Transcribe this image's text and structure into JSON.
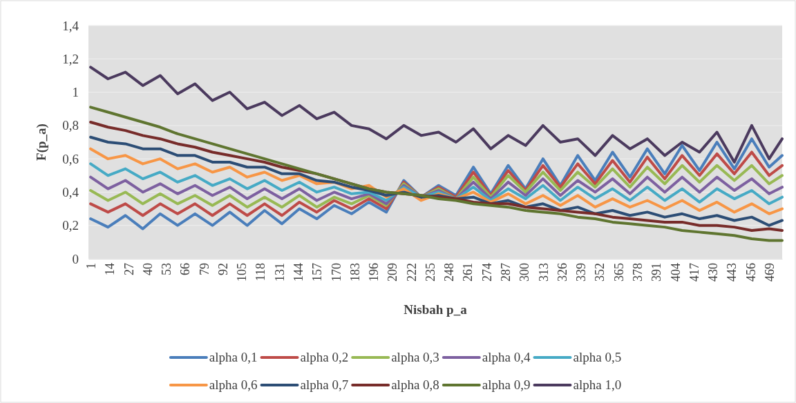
{
  "chart_data": {
    "type": "line",
    "xlabel": "Nisbah p_a",
    "ylabel": "F(p_a)",
    "x": [
      1,
      13,
      25,
      37,
      49,
      61,
      73,
      85,
      97,
      109,
      121,
      133,
      145,
      157,
      169,
      181,
      193,
      205,
      217,
      229,
      241,
      253,
      265,
      277,
      289,
      301,
      313,
      325,
      337,
      349,
      361,
      373,
      385,
      397,
      409,
      421,
      433,
      445,
      457,
      469,
      478
    ],
    "xlim": [
      -0.5,
      478
    ],
    "xticks": [
      1,
      14,
      27,
      40,
      53,
      66,
      79,
      92,
      105,
      118,
      131,
      144,
      157,
      170,
      183,
      196,
      209,
      222,
      235,
      248,
      261,
      274,
      287,
      300,
      313,
      326,
      339,
      352,
      365,
      378,
      391,
      404,
      417,
      430,
      443,
      456,
      469
    ],
    "ylim": [
      0,
      1.4
    ],
    "yticks": [
      {
        "value": 0,
        "label": "0"
      },
      {
        "value": 0.2,
        "label": "0,2"
      },
      {
        "value": 0.4,
        "label": "0,4"
      },
      {
        "value": 0.6,
        "label": "0,6"
      },
      {
        "value": 0.8,
        "label": "0,8"
      },
      {
        "value": 1,
        "label": "1"
      },
      {
        "value": 1.2,
        "label": "1,2"
      },
      {
        "value": 1.4,
        "label": "1,4"
      }
    ],
    "grid": "y",
    "legend": "bottom",
    "marker": "none",
    "line_style": "solid",
    "series": [
      {
        "name": "alpha 0,1",
        "color": "#4a7ebb",
        "values": [
          0.24,
          0.19,
          0.26,
          0.18,
          0.27,
          0.2,
          0.27,
          0.2,
          0.28,
          0.2,
          0.29,
          0.21,
          0.3,
          0.24,
          0.32,
          0.27,
          0.34,
          0.28,
          0.47,
          0.37,
          0.44,
          0.38,
          0.55,
          0.39,
          0.56,
          0.42,
          0.6,
          0.44,
          0.62,
          0.47,
          0.64,
          0.49,
          0.66,
          0.51,
          0.68,
          0.53,
          0.7,
          0.54,
          0.72,
          0.55,
          0.62
        ]
      },
      {
        "name": "alpha 0,2",
        "color": "#be4b48",
        "values": [
          0.33,
          0.28,
          0.33,
          0.26,
          0.33,
          0.27,
          0.33,
          0.26,
          0.33,
          0.26,
          0.33,
          0.26,
          0.34,
          0.28,
          0.35,
          0.3,
          0.36,
          0.3,
          0.46,
          0.37,
          0.43,
          0.37,
          0.52,
          0.38,
          0.53,
          0.41,
          0.56,
          0.43,
          0.57,
          0.45,
          0.59,
          0.46,
          0.61,
          0.48,
          0.62,
          0.5,
          0.63,
          0.51,
          0.64,
          0.5,
          0.56
        ]
      },
      {
        "name": "alpha 0,3",
        "color": "#98b954",
        "values": [
          0.41,
          0.35,
          0.4,
          0.33,
          0.39,
          0.33,
          0.38,
          0.32,
          0.38,
          0.31,
          0.37,
          0.31,
          0.38,
          0.31,
          0.37,
          0.33,
          0.38,
          0.32,
          0.45,
          0.37,
          0.42,
          0.36,
          0.49,
          0.37,
          0.5,
          0.4,
          0.52,
          0.41,
          0.52,
          0.43,
          0.54,
          0.43,
          0.55,
          0.45,
          0.56,
          0.46,
          0.56,
          0.47,
          0.56,
          0.45,
          0.5
        ]
      },
      {
        "name": "alpha 0,4",
        "color": "#7d60a0",
        "values": [
          0.49,
          0.42,
          0.47,
          0.4,
          0.45,
          0.39,
          0.44,
          0.38,
          0.43,
          0.36,
          0.42,
          0.36,
          0.42,
          0.35,
          0.4,
          0.36,
          0.39,
          0.33,
          0.44,
          0.37,
          0.41,
          0.36,
          0.46,
          0.36,
          0.46,
          0.38,
          0.48,
          0.38,
          0.47,
          0.4,
          0.48,
          0.39,
          0.49,
          0.4,
          0.49,
          0.4,
          0.49,
          0.41,
          0.48,
          0.39,
          0.43
        ]
      },
      {
        "name": "alpha 0,5",
        "color": "#46aac5",
        "values": [
          0.57,
          0.5,
          0.54,
          0.48,
          0.52,
          0.46,
          0.5,
          0.44,
          0.48,
          0.42,
          0.47,
          0.41,
          0.46,
          0.4,
          0.43,
          0.39,
          0.4,
          0.35,
          0.43,
          0.37,
          0.4,
          0.36,
          0.43,
          0.35,
          0.42,
          0.36,
          0.44,
          0.35,
          0.43,
          0.36,
          0.42,
          0.35,
          0.43,
          0.35,
          0.42,
          0.34,
          0.42,
          0.36,
          0.41,
          0.33,
          0.37
        ]
      },
      {
        "name": "alpha 0,6",
        "color": "#f79646",
        "values": [
          0.66,
          0.6,
          0.62,
          0.57,
          0.6,
          0.54,
          0.57,
          0.52,
          0.55,
          0.49,
          0.52,
          0.47,
          0.5,
          0.45,
          0.46,
          0.42,
          0.44,
          0.37,
          0.42,
          0.35,
          0.39,
          0.36,
          0.4,
          0.34,
          0.39,
          0.33,
          0.38,
          0.32,
          0.38,
          0.31,
          0.36,
          0.31,
          0.35,
          0.3,
          0.35,
          0.29,
          0.34,
          0.28,
          0.33,
          0.27,
          0.3
        ]
      },
      {
        "name": "alpha 0,7",
        "color": "#2c4d75",
        "values": [
          0.73,
          0.7,
          0.69,
          0.66,
          0.66,
          0.62,
          0.62,
          0.58,
          0.58,
          0.55,
          0.55,
          0.51,
          0.51,
          0.47,
          0.46,
          0.43,
          0.41,
          0.38,
          0.4,
          0.37,
          0.38,
          0.36,
          0.37,
          0.33,
          0.35,
          0.31,
          0.33,
          0.29,
          0.31,
          0.27,
          0.29,
          0.26,
          0.28,
          0.25,
          0.27,
          0.24,
          0.26,
          0.23,
          0.25,
          0.2,
          0.23
        ]
      },
      {
        "name": "alpha 0,8",
        "color": "#772c2a",
        "values": [
          0.82,
          0.79,
          0.77,
          0.74,
          0.72,
          0.69,
          0.67,
          0.64,
          0.62,
          0.6,
          0.58,
          0.55,
          0.53,
          0.51,
          0.48,
          0.45,
          0.42,
          0.4,
          0.39,
          0.38,
          0.37,
          0.36,
          0.34,
          0.33,
          0.33,
          0.31,
          0.3,
          0.29,
          0.28,
          0.27,
          0.25,
          0.24,
          0.23,
          0.22,
          0.22,
          0.2,
          0.2,
          0.19,
          0.17,
          0.18,
          0.17
        ]
      },
      {
        "name": "alpha 0,9",
        "color": "#5f7530",
        "values": [
          0.91,
          0.88,
          0.85,
          0.82,
          0.79,
          0.75,
          0.72,
          0.69,
          0.66,
          0.63,
          0.6,
          0.57,
          0.54,
          0.51,
          0.48,
          0.45,
          0.42,
          0.4,
          0.39,
          0.38,
          0.36,
          0.35,
          0.33,
          0.32,
          0.31,
          0.29,
          0.28,
          0.27,
          0.25,
          0.24,
          0.22,
          0.21,
          0.2,
          0.19,
          0.17,
          0.16,
          0.15,
          0.14,
          0.12,
          0.11,
          0.11
        ]
      },
      {
        "name": "alpha 1,0",
        "color": "#4b3a5e",
        "values": [
          1.15,
          1.08,
          1.12,
          1.04,
          1.1,
          0.99,
          1.05,
          0.95,
          1.0,
          0.9,
          0.94,
          0.86,
          0.92,
          0.84,
          0.88,
          0.8,
          0.78,
          0.72,
          0.8,
          0.74,
          0.76,
          0.7,
          0.78,
          0.66,
          0.74,
          0.68,
          0.8,
          0.7,
          0.72,
          0.62,
          0.74,
          0.66,
          0.72,
          0.62,
          0.7,
          0.64,
          0.76,
          0.58,
          0.8,
          0.6,
          0.72
        ]
      }
    ]
  }
}
